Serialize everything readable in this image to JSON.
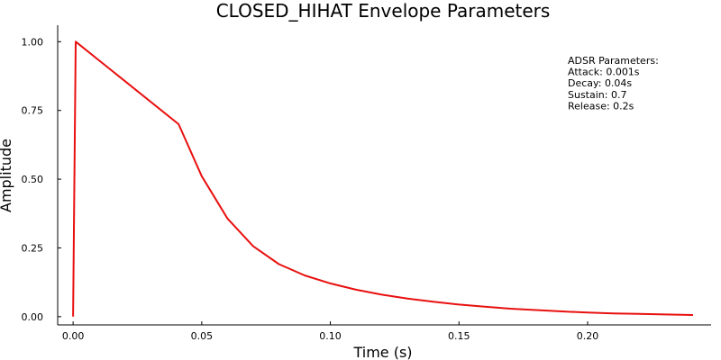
{
  "chart_data": {
    "type": "line",
    "title": "CLOSED_HIHAT Envelope Parameters",
    "xlabel": "Time (s)",
    "ylabel": "Amplitude",
    "xlim": [
      -0.006,
      0.248
    ],
    "ylim": [
      -0.03,
      1.06
    ],
    "x_ticks": [
      0.0,
      0.05,
      0.1,
      0.15,
      0.2
    ],
    "x_tick_labels": [
      "0.00",
      "0.05",
      "0.10",
      "0.15",
      "0.20"
    ],
    "y_ticks": [
      0.0,
      0.25,
      0.5,
      0.75,
      1.0
    ],
    "y_tick_labels": [
      "0.00",
      "0.25",
      "0.50",
      "0.75",
      "1.00"
    ],
    "grid": false,
    "legend": "none",
    "series": [
      {
        "color": "#e8100f",
        "x": [
          0.0,
          0.001,
          0.041,
          0.05,
          0.06,
          0.07,
          0.08,
          0.09,
          0.1,
          0.11,
          0.12,
          0.13,
          0.14,
          0.15,
          0.16,
          0.17,
          0.18,
          0.19,
          0.2,
          0.21,
          0.22,
          0.23,
          0.241
        ],
        "y": [
          0.0,
          1.0,
          0.7,
          0.511,
          0.357,
          0.256,
          0.191,
          0.15,
          0.121,
          0.098,
          0.08,
          0.066,
          0.054,
          0.044,
          0.036,
          0.029,
          0.024,
          0.019,
          0.015,
          0.012,
          0.01,
          0.008,
          0.006
        ]
      }
    ],
    "annotation": {
      "lines": [
        "ADSR Parameters:",
        "Attack: 0.001s",
        "Decay: 0.04s",
        "Sustain: 0.7",
        "Release: 0.2s"
      ]
    }
  }
}
